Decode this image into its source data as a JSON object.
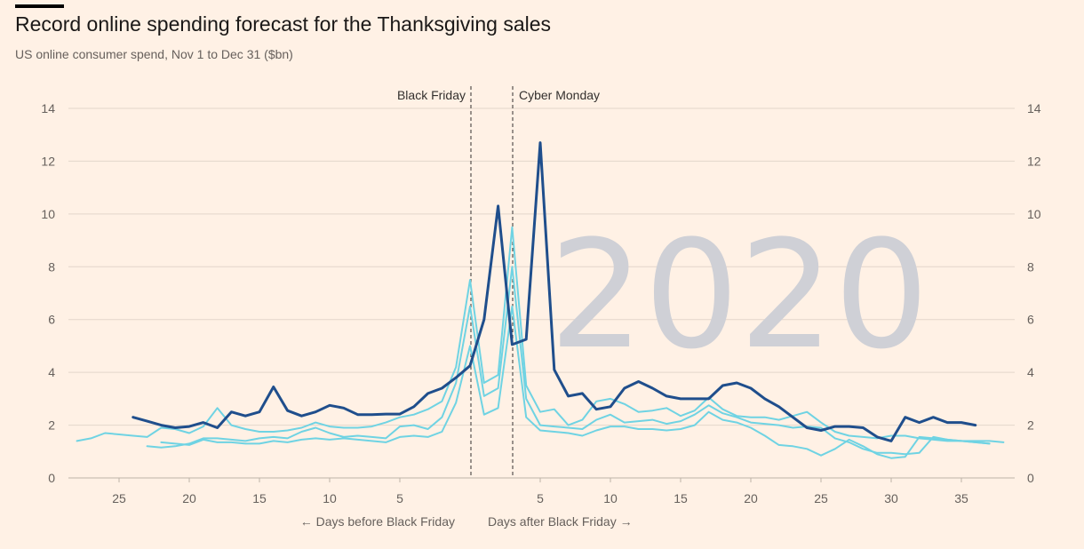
{
  "header": {
    "title": "Record online spending forecast for the Thanksgiving sales",
    "subtitle": "US online consumer spend, Nov 1 to Dec 31 ($bn)"
  },
  "colors": {
    "background": "#fff1e5",
    "highlight_series": "#1f4e8c",
    "other_series": "#6fd3e3",
    "watermark": "#cfd0d6",
    "gridline": "#e3d6cb"
  },
  "chart_data": {
    "type": "line",
    "watermark": "2020",
    "annotations": [
      {
        "label": "Black Friday",
        "x": 0
      },
      {
        "label": "Cyber Monday",
        "x": 3
      }
    ],
    "xlabel_left": "← Days before Black Friday",
    "xlabel_right": "Days after Black Friday →",
    "x_ticks": [
      {
        "x": -25,
        "label": "25"
      },
      {
        "x": -20,
        "label": "20"
      },
      {
        "x": -15,
        "label": "15"
      },
      {
        "x": -10,
        "label": "10"
      },
      {
        "x": -5,
        "label": "5"
      },
      {
        "x": 5,
        "label": "5"
      },
      {
        "x": 10,
        "label": "10"
      },
      {
        "x": 15,
        "label": "15"
      },
      {
        "x": 20,
        "label": "20"
      },
      {
        "x": 25,
        "label": "25"
      },
      {
        "x": 30,
        "label": "30"
      },
      {
        "x": 35,
        "label": "35"
      }
    ],
    "xlim": [
      -29,
      39
    ],
    "ylim": [
      0,
      14
    ],
    "y_ticks": [
      0,
      2,
      4,
      6,
      8,
      10,
      12,
      14
    ],
    "grid": true,
    "y_axis_both_sides": true,
    "series": [
      {
        "highlight": false,
        "points": [
          [
            -28,
            1.4
          ],
          [
            -27,
            1.5
          ],
          [
            -26,
            1.7
          ],
          [
            -25,
            1.65
          ],
          [
            -24,
            1.6
          ],
          [
            -23,
            1.55
          ],
          [
            -22,
            1.9
          ],
          [
            -21,
            1.85
          ],
          [
            -20,
            1.7
          ],
          [
            -19,
            1.95
          ],
          [
            -18,
            2.65
          ],
          [
            -17,
            2.0
          ],
          [
            -16,
            1.85
          ],
          [
            -15,
            1.75
          ],
          [
            -14,
            1.75
          ],
          [
            -13,
            1.8
          ],
          [
            -12,
            1.9
          ],
          [
            -11,
            2.1
          ],
          [
            -10,
            1.95
          ],
          [
            -9,
            1.9
          ],
          [
            -8,
            1.9
          ],
          [
            -7,
            1.95
          ],
          [
            -6,
            2.1
          ],
          [
            -5,
            2.3
          ],
          [
            -4,
            2.4
          ],
          [
            -3,
            2.6
          ],
          [
            -2,
            2.9
          ],
          [
            -1,
            4.2
          ],
          [
            0,
            7.5
          ],
          [
            1,
            3.6
          ],
          [
            2,
            3.9
          ],
          [
            3,
            9.5
          ],
          [
            4,
            3.5
          ],
          [
            5,
            2.5
          ],
          [
            6,
            2.6
          ],
          [
            7,
            2.0
          ],
          [
            8,
            2.2
          ],
          [
            9,
            2.9
          ],
          [
            10,
            3.0
          ],
          [
            11,
            2.8
          ],
          [
            12,
            2.5
          ],
          [
            13,
            2.55
          ],
          [
            14,
            2.65
          ],
          [
            15,
            2.35
          ],
          [
            16,
            2.55
          ],
          [
            17,
            3.05
          ],
          [
            18,
            2.6
          ],
          [
            19,
            2.35
          ],
          [
            20,
            2.3
          ],
          [
            21,
            2.3
          ],
          [
            22,
            2.2
          ],
          [
            23,
            2.35
          ],
          [
            24,
            2.5
          ],
          [
            25,
            2.1
          ],
          [
            26,
            1.75
          ],
          [
            27,
            1.6
          ],
          [
            28,
            1.55
          ],
          [
            29,
            1.5
          ],
          [
            30,
            1.6
          ],
          [
            31,
            1.6
          ],
          [
            32,
            1.5
          ],
          [
            33,
            1.45
          ],
          [
            34,
            1.4
          ],
          [
            35,
            1.4
          ],
          [
            36,
            1.4
          ],
          [
            37,
            1.4
          ],
          [
            38,
            1.35
          ]
        ]
      },
      {
        "highlight": false,
        "points": [
          [
            -23,
            1.2
          ],
          [
            -22,
            1.15
          ],
          [
            -21,
            1.2
          ],
          [
            -20,
            1.3
          ],
          [
            -19,
            1.5
          ],
          [
            -18,
            1.5
          ],
          [
            -17,
            1.45
          ],
          [
            -16,
            1.4
          ],
          [
            -15,
            1.5
          ],
          [
            -14,
            1.55
          ],
          [
            -13,
            1.5
          ],
          [
            -12,
            1.75
          ],
          [
            -11,
            1.9
          ],
          [
            -10,
            1.7
          ],
          [
            -9,
            1.55
          ],
          [
            -8,
            1.6
          ],
          [
            -7,
            1.55
          ],
          [
            -6,
            1.5
          ],
          [
            -5,
            1.95
          ],
          [
            -4,
            2.0
          ],
          [
            -3,
            1.85
          ],
          [
            -2,
            2.3
          ],
          [
            -1,
            3.6
          ],
          [
            0,
            6.5
          ],
          [
            1,
            3.1
          ],
          [
            2,
            3.4
          ],
          [
            3,
            8.0
          ],
          [
            4,
            3.0
          ],
          [
            5,
            2.0
          ],
          [
            6,
            1.95
          ],
          [
            7,
            1.9
          ],
          [
            8,
            1.85
          ],
          [
            9,
            2.2
          ],
          [
            10,
            2.4
          ],
          [
            11,
            2.1
          ],
          [
            12,
            2.15
          ],
          [
            13,
            2.2
          ],
          [
            14,
            2.05
          ],
          [
            15,
            2.15
          ],
          [
            16,
            2.4
          ],
          [
            17,
            2.75
          ],
          [
            18,
            2.45
          ],
          [
            19,
            2.3
          ],
          [
            20,
            2.1
          ],
          [
            21,
            2.05
          ],
          [
            22,
            2.0
          ],
          [
            23,
            1.9
          ],
          [
            24,
            1.95
          ],
          [
            25,
            1.9
          ],
          [
            26,
            1.5
          ],
          [
            27,
            1.35
          ],
          [
            28,
            1.1
          ],
          [
            29,
            0.95
          ],
          [
            30,
            0.95
          ],
          [
            31,
            0.9
          ],
          [
            32,
            0.95
          ],
          [
            33,
            1.55
          ],
          [
            34,
            1.45
          ],
          [
            35,
            1.4
          ],
          [
            36,
            1.35
          ],
          [
            37,
            1.3
          ]
        ]
      },
      {
        "highlight": false,
        "points": [
          [
            -22,
            1.35
          ],
          [
            -21,
            1.3
          ],
          [
            -20,
            1.25
          ],
          [
            -19,
            1.45
          ],
          [
            -18,
            1.35
          ],
          [
            -17,
            1.35
          ],
          [
            -16,
            1.3
          ],
          [
            -15,
            1.3
          ],
          [
            -14,
            1.4
          ],
          [
            -13,
            1.35
          ],
          [
            -12,
            1.45
          ],
          [
            -11,
            1.5
          ],
          [
            -10,
            1.45
          ],
          [
            -9,
            1.5
          ],
          [
            -8,
            1.45
          ],
          [
            -7,
            1.4
          ],
          [
            -6,
            1.35
          ],
          [
            -5,
            1.55
          ],
          [
            -4,
            1.6
          ],
          [
            -3,
            1.55
          ],
          [
            -2,
            1.75
          ],
          [
            -1,
            2.85
          ],
          [
            0,
            5.0
          ],
          [
            1,
            2.4
          ],
          [
            2,
            2.65
          ],
          [
            3,
            6.5
          ],
          [
            4,
            2.3
          ],
          [
            5,
            1.8
          ],
          [
            6,
            1.75
          ],
          [
            7,
            1.7
          ],
          [
            8,
            1.6
          ],
          [
            9,
            1.8
          ],
          [
            10,
            1.95
          ],
          [
            11,
            1.95
          ],
          [
            12,
            1.85
          ],
          [
            13,
            1.85
          ],
          [
            14,
            1.8
          ],
          [
            15,
            1.85
          ],
          [
            16,
            2.0
          ],
          [
            17,
            2.5
          ],
          [
            18,
            2.2
          ],
          [
            19,
            2.1
          ],
          [
            20,
            1.9
          ],
          [
            21,
            1.6
          ],
          [
            22,
            1.25
          ],
          [
            23,
            1.2
          ],
          [
            24,
            1.1
          ],
          [
            25,
            0.85
          ],
          [
            26,
            1.1
          ],
          [
            27,
            1.45
          ],
          [
            28,
            1.2
          ],
          [
            29,
            0.9
          ],
          [
            30,
            0.75
          ],
          [
            31,
            0.8
          ],
          [
            32,
            1.55
          ],
          [
            33,
            1.5
          ],
          [
            34,
            1.45
          ],
          [
            35,
            1.4
          ],
          [
            36,
            1.35
          ],
          [
            37,
            1.3
          ]
        ]
      },
      {
        "highlight": true,
        "points": [
          [
            -24,
            2.3
          ],
          [
            -23,
            2.15
          ],
          [
            -22,
            2.0
          ],
          [
            -21,
            1.9
          ],
          [
            -20,
            1.95
          ],
          [
            -19,
            2.1
          ],
          [
            -18,
            1.9
          ],
          [
            -17,
            2.5
          ],
          [
            -16,
            2.35
          ],
          [
            -15,
            2.5
          ],
          [
            -14,
            3.45
          ],
          [
            -13,
            2.55
          ],
          [
            -12,
            2.35
          ],
          [
            -11,
            2.5
          ],
          [
            -10,
            2.75
          ],
          [
            -9,
            2.65
          ],
          [
            -8,
            2.4
          ],
          [
            -7,
            2.4
          ],
          [
            -6,
            2.42
          ],
          [
            -5,
            2.42
          ],
          [
            -4,
            2.7
          ],
          [
            -3,
            3.2
          ],
          [
            -2,
            3.4
          ],
          [
            -1,
            3.8
          ],
          [
            0,
            4.25
          ],
          [
            1,
            6.0
          ],
          [
            2,
            10.3
          ],
          [
            3,
            5.05
          ],
          [
            4,
            5.25
          ],
          [
            5,
            12.7
          ],
          [
            6,
            4.1
          ],
          [
            7,
            3.1
          ],
          [
            8,
            3.2
          ],
          [
            9,
            2.6
          ],
          [
            10,
            2.7
          ],
          [
            11,
            3.4
          ],
          [
            12,
            3.65
          ],
          [
            13,
            3.4
          ],
          [
            14,
            3.1
          ],
          [
            15,
            3.0
          ],
          [
            16,
            3.0
          ],
          [
            17,
            3.0
          ],
          [
            18,
            3.5
          ],
          [
            19,
            3.6
          ],
          [
            20,
            3.4
          ],
          [
            21,
            3.0
          ],
          [
            22,
            2.7
          ],
          [
            23,
            2.3
          ],
          [
            24,
            1.9
          ],
          [
            25,
            1.8
          ],
          [
            26,
            1.95
          ],
          [
            27,
            1.95
          ],
          [
            28,
            1.9
          ],
          [
            29,
            1.55
          ],
          [
            30,
            1.4
          ],
          [
            31,
            2.3
          ],
          [
            32,
            2.1
          ],
          [
            33,
            2.3
          ],
          [
            34,
            2.1
          ],
          [
            35,
            2.1
          ],
          [
            36,
            2.0
          ]
        ]
      }
    ]
  }
}
